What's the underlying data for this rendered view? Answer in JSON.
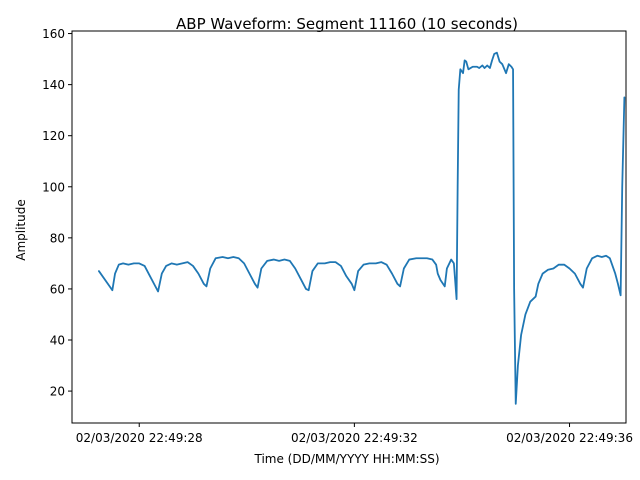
{
  "chart_data": {
    "type": "line",
    "title": "ABP Waveform: Segment 11160 (10 seconds)",
    "xlabel": "Time (DD/MM/YYYY HH:MM:SS)",
    "ylabel": "Amplitude",
    "x_unit": "seconds after 02/03/2020 22:49:26",
    "xlim": [
      26.75,
      37.05
    ],
    "ylim": [
      7.5,
      161.0
    ],
    "x_ticks": [
      {
        "value": 28,
        "label": "02/03/2020 22:49:28"
      },
      {
        "value": 32,
        "label": "02/03/2020 22:49:32"
      },
      {
        "value": 36,
        "label": "02/03/2020 22:49:36"
      }
    ],
    "y_ticks": [
      20,
      40,
      60,
      80,
      100,
      120,
      140,
      160
    ],
    "grid": false,
    "series": [
      {
        "color": "#1f77b4",
        "points": [
          [
            27.25,
            67
          ],
          [
            27.45,
            61
          ],
          [
            27.5,
            59.5
          ],
          [
            27.55,
            66
          ],
          [
            27.62,
            69.5
          ],
          [
            27.7,
            70
          ],
          [
            27.8,
            69.5
          ],
          [
            27.9,
            70
          ],
          [
            28.0,
            70
          ],
          [
            28.1,
            69
          ],
          [
            28.2,
            65
          ],
          [
            28.3,
            61
          ],
          [
            28.35,
            59
          ],
          [
            28.42,
            66
          ],
          [
            28.5,
            69
          ],
          [
            28.6,
            70
          ],
          [
            28.7,
            69.5
          ],
          [
            28.8,
            70
          ],
          [
            28.9,
            70.5
          ],
          [
            29.0,
            69
          ],
          [
            29.1,
            66
          ],
          [
            29.2,
            62
          ],
          [
            29.25,
            61
          ],
          [
            29.32,
            68
          ],
          [
            29.42,
            72
          ],
          [
            29.55,
            72.5
          ],
          [
            29.65,
            72
          ],
          [
            29.75,
            72.5
          ],
          [
            29.85,
            72
          ],
          [
            29.95,
            70
          ],
          [
            30.05,
            66
          ],
          [
            30.15,
            62
          ],
          [
            30.2,
            60.5
          ],
          [
            30.27,
            68
          ],
          [
            30.38,
            71
          ],
          [
            30.5,
            71.5
          ],
          [
            30.6,
            71
          ],
          [
            30.7,
            71.5
          ],
          [
            30.8,
            71
          ],
          [
            30.9,
            68
          ],
          [
            31.0,
            64
          ],
          [
            31.1,
            60
          ],
          [
            31.15,
            59.5
          ],
          [
            31.22,
            67
          ],
          [
            31.32,
            70
          ],
          [
            31.45,
            70
          ],
          [
            31.55,
            70.5
          ],
          [
            31.65,
            70.5
          ],
          [
            31.75,
            69
          ],
          [
            31.85,
            65
          ],
          [
            31.95,
            62
          ],
          [
            32.0,
            59.5
          ],
          [
            32.07,
            67
          ],
          [
            32.17,
            69.5
          ],
          [
            32.28,
            70
          ],
          [
            32.4,
            70
          ],
          [
            32.5,
            70.5
          ],
          [
            32.6,
            69.5
          ],
          [
            32.7,
            66
          ],
          [
            32.8,
            62
          ],
          [
            32.85,
            61
          ],
          [
            32.92,
            68
          ],
          [
            33.02,
            71.5
          ],
          [
            33.15,
            72
          ],
          [
            33.25,
            72
          ],
          [
            33.35,
            72
          ],
          [
            33.45,
            71.5
          ],
          [
            33.52,
            69.5
          ],
          [
            33.55,
            66
          ],
          [
            33.6,
            63.5
          ],
          [
            33.68,
            61
          ],
          [
            33.72,
            68
          ],
          [
            33.8,
            71.5
          ],
          [
            33.85,
            70
          ],
          [
            33.9,
            56
          ],
          [
            33.92,
            100
          ],
          [
            33.94,
            138
          ],
          [
            33.97,
            146
          ],
          [
            34.02,
            144.5
          ],
          [
            34.05,
            149.5
          ],
          [
            34.08,
            149
          ],
          [
            34.12,
            146
          ],
          [
            34.2,
            147
          ],
          [
            34.28,
            147
          ],
          [
            34.32,
            146.5
          ],
          [
            34.38,
            147.5
          ],
          [
            34.42,
            146.5
          ],
          [
            34.47,
            147.5
          ],
          [
            34.52,
            146.5
          ],
          [
            34.56,
            149.5
          ],
          [
            34.6,
            152
          ],
          [
            34.65,
            152.5
          ],
          [
            34.7,
            149
          ],
          [
            34.75,
            148
          ],
          [
            34.82,
            144.5
          ],
          [
            34.87,
            148
          ],
          [
            34.92,
            147
          ],
          [
            34.95,
            146
          ],
          [
            34.97,
            60
          ],
          [
            35.0,
            15
          ],
          [
            35.04,
            30
          ],
          [
            35.1,
            42
          ],
          [
            35.18,
            50
          ],
          [
            35.27,
            55
          ],
          [
            35.37,
            57
          ],
          [
            35.42,
            62
          ],
          [
            35.5,
            66
          ],
          [
            35.6,
            67.5
          ],
          [
            35.7,
            68
          ],
          [
            35.8,
            69.5
          ],
          [
            35.9,
            69.5
          ],
          [
            36.0,
            68
          ],
          [
            36.1,
            66
          ],
          [
            36.2,
            62
          ],
          [
            36.25,
            60.5
          ],
          [
            36.32,
            68
          ],
          [
            36.42,
            72
          ],
          [
            36.52,
            73
          ],
          [
            36.6,
            72.5
          ],
          [
            36.68,
            73
          ],
          [
            36.75,
            72
          ],
          [
            36.85,
            66
          ],
          [
            36.9,
            62
          ],
          [
            36.95,
            57.5
          ],
          [
            36.98,
            100
          ],
          [
            37.02,
            135
          ]
        ]
      }
    ]
  }
}
